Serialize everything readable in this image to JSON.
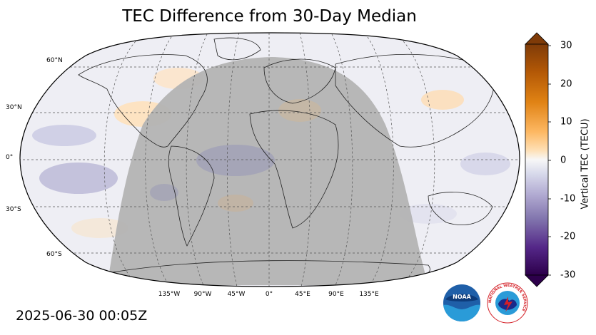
{
  "title": "TEC Difference from 30-Day Median",
  "timestamp": "2025-06-30 00:05Z",
  "lat_labels": [
    "60°N",
    "30°N",
    "0°",
    "30°S",
    "60°S"
  ],
  "lon_labels": [
    "135°W",
    "90°W",
    "45°W",
    "0°",
    "45°E",
    "90°E",
    "135°E"
  ],
  "colorbar": {
    "label": "Vertical TEC (TECU)",
    "ticks": [
      "30",
      "20",
      "10",
      "0",
      "-10",
      "-20",
      "-30"
    ],
    "range": [
      -30,
      30
    ],
    "colors": {
      "high": "#7f3b08",
      "mid": "#f7f7f7",
      "low": "#2d004b"
    }
  },
  "logos": {
    "noaa": "NOAA",
    "nws": "NATIONAL WEATHER SERVICE"
  },
  "colors": {
    "night_shade": "#b3b3b3",
    "ocean": "#eeeef4"
  }
}
